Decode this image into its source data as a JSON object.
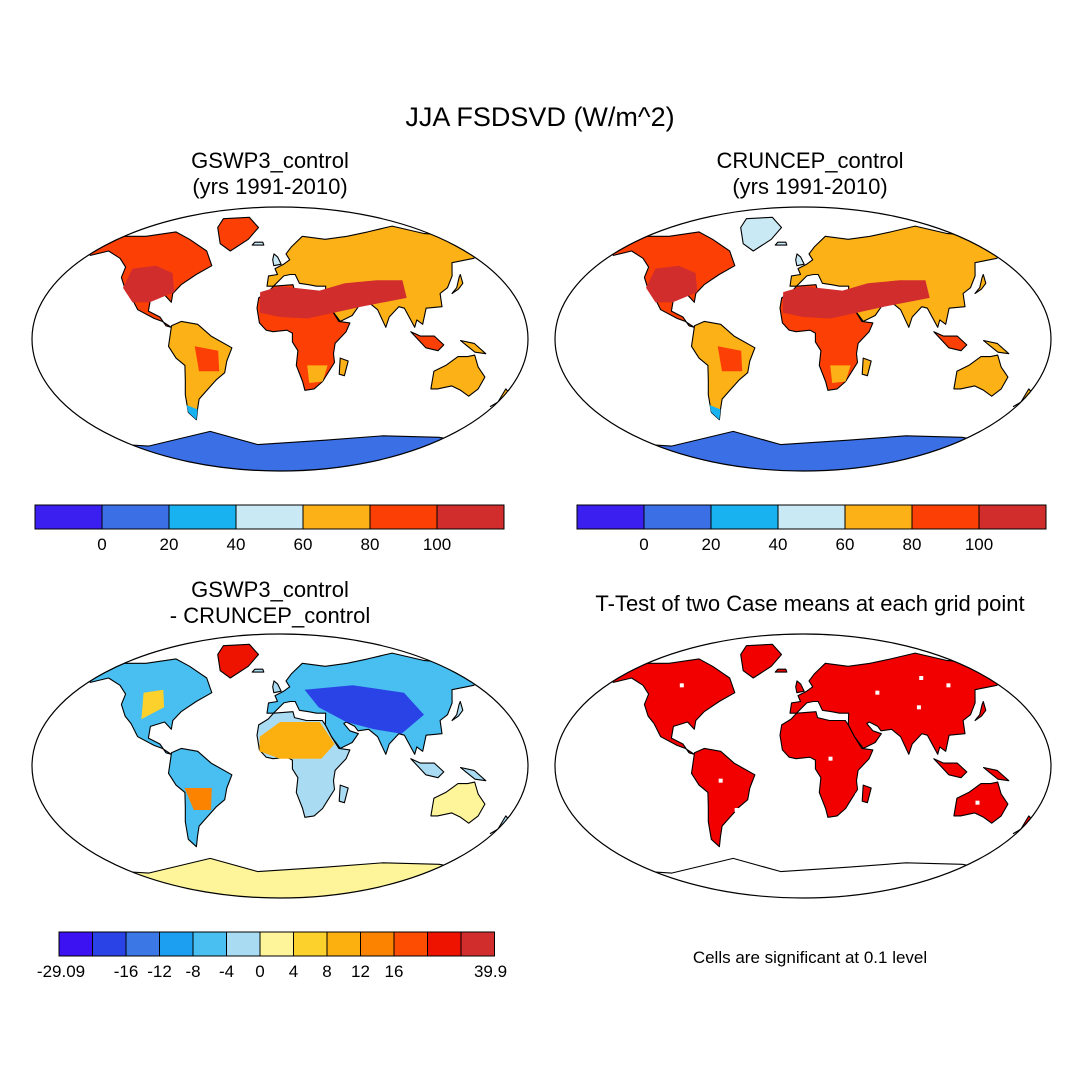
{
  "title": "JJA FSDSVD (W/m^2)",
  "panels": [
    {
      "id": "p1",
      "title_line1": "GSWP3_control",
      "title_line2": "(yrs 1991-2010)"
    },
    {
      "id": "p2",
      "title_line1": "CRUNCEP_control",
      "title_line2": "(yrs 1991-2010)"
    },
    {
      "id": "p3",
      "title_line1": "GSWP3_control",
      "title_line2": "- CRUNCEP_control"
    },
    {
      "id": "p4",
      "title_line1": "T-Test of two Case means at each grid point",
      "title_line2": ""
    }
  ],
  "colorbars": {
    "absolute": {
      "colors": [
        "#3a1ff0",
        "#3b6fe6",
        "#18b2f0",
        "#c9e9f5",
        "#fcb117",
        "#fb3f05",
        "#d22d2d"
      ],
      "labels": [
        "0",
        "20",
        "40",
        "60",
        "80",
        "100"
      ]
    },
    "difference": {
      "colors": [
        "#3c12f2",
        "#2a43e6",
        "#3b78e6",
        "#1c9ff0",
        "#48bff0",
        "#a9dcf3",
        "#fef59a",
        "#fdd12c",
        "#fcb010",
        "#fb8300",
        "#fc4d02",
        "#ee1200",
        "#d22d2d"
      ],
      "labels": [
        "-29.09",
        "-16",
        "-12",
        "-8",
        "-4",
        "0",
        "4",
        "8",
        "12",
        "16",
        "39.9"
      ]
    }
  },
  "significance_note": "Cells are significant at 0.1 level",
  "palette": {
    "ocean": "#ffffff",
    "coast": "#000000",
    "significant": "#f20000"
  }
}
